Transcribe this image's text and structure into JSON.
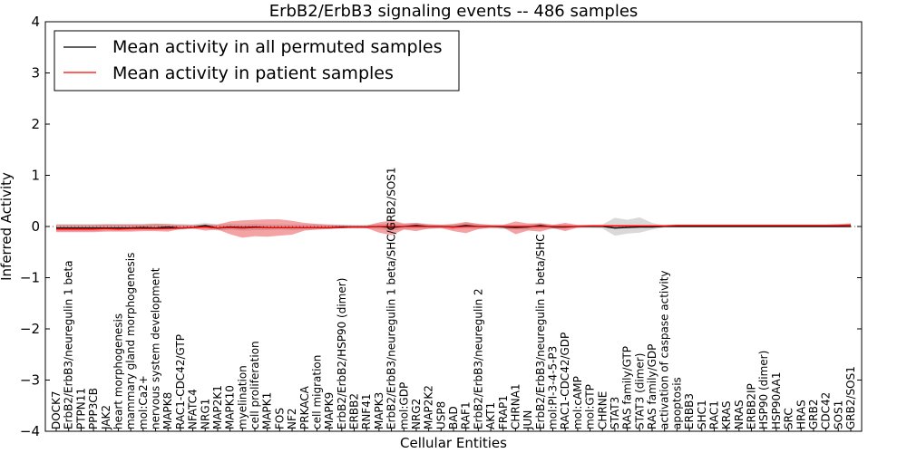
{
  "chart_data": {
    "type": "line",
    "title": "ErbB2/ErbB3 signaling events -- 486 samples",
    "xlabel": "Cellular Entities",
    "ylabel": "Inferred Activity",
    "ylim": [
      -4,
      4
    ],
    "yticks": [
      -4,
      -3,
      -2,
      -1,
      0,
      1,
      2,
      3,
      4
    ],
    "legend_position": "upper-left",
    "categories": [
      "DOCK7",
      "ErbB2/ErbB3/neuregulin 1 beta",
      "PTPN11",
      "PPP3CB",
      "JAK2",
      "heart morphogenesis",
      "mammary gland morphogenesis",
      "mol:Ca2+",
      "nervous system development",
      "MAPK8",
      "RAC1-CDC42/GTP",
      "NFATC4",
      "NRG1",
      "MAP2K1",
      "MAPK10",
      "myelination",
      "cell proliferation",
      "MAPK1",
      "FOS",
      "NF2",
      "PRKACA",
      "cell migration",
      "MAPK9",
      "ErbB2/ErbB2/HSP90 (dimer)",
      "ERBB2",
      "RNF41",
      "MAPK3",
      "ErbB2/ErbB3/neuregulin 1 beta/SHC/GRB2/SOS1",
      "mol:GDP",
      "NRG2",
      "MAP2K2",
      "USP8",
      "BAD",
      "RAF1",
      "ErbB2/ErbB3/neuregulin 2",
      "AKT1",
      "FRAP1",
      "CHRNA1",
      "JUN",
      "ErbB2/ErbB3/neuregulin 1 beta/SHC",
      "mol:PI-3-4-5-P3",
      "RAC1-CDC42/GDP",
      "mol:cAMP",
      "mol:GTP",
      "CHRNE",
      "STAT3",
      "RAS family/GTP",
      "STAT3 (dimer)",
      "RAS family/GDP",
      "activation of caspase activity",
      "apoptosis",
      "ERBB3",
      "SHC1",
      "RAC1",
      "KRAS",
      "NRAS",
      "ERBB2IP",
      "HSP90 (dimer)",
      "HSP90AA1",
      "SRC",
      "HRAS",
      "GRB2",
      "CDC42",
      "SOS1",
      "GRB2/SOS1"
    ],
    "series": [
      {
        "name": "Mean activity in all permuted samples",
        "color": "#000000",
        "values": [
          -0.03,
          -0.03,
          -0.03,
          -0.03,
          -0.03,
          -0.03,
          -0.03,
          -0.02,
          -0.03,
          -0.01,
          -0.03,
          -0.02,
          0.02,
          -0.03,
          -0.01,
          -0.02,
          -0.01,
          -0.02,
          -0.02,
          -0.02,
          -0.02,
          -0.02,
          -0.02,
          -0.01,
          -0.01,
          -0.01,
          0.0,
          -0.02,
          0.0,
          0.02,
          0.0,
          0.0,
          -0.01,
          0.02,
          0.0,
          0.0,
          -0.01,
          -0.02,
          -0.01,
          0.02,
          -0.01,
          -0.01,
          0.0,
          0.0,
          0.0,
          -0.03,
          -0.02,
          -0.01,
          -0.01,
          0.0,
          0.0,
          0.0,
          0.0,
          0.0,
          0.0,
          0.0,
          0.0,
          0.0,
          0.0,
          0.0,
          0.0,
          0.0,
          0.0,
          0.0,
          0.0
        ],
        "band_low": [
          -0.09,
          -0.09,
          -0.09,
          -0.09,
          -0.08,
          -0.08,
          -0.08,
          -0.06,
          -0.07,
          -0.05,
          -0.06,
          -0.05,
          -0.03,
          -0.08,
          -0.06,
          -0.08,
          -0.07,
          -0.07,
          -0.06,
          -0.07,
          -0.06,
          -0.06,
          -0.05,
          -0.04,
          -0.04,
          -0.04,
          -0.05,
          -0.08,
          -0.05,
          -0.04,
          -0.05,
          -0.04,
          -0.05,
          -0.04,
          -0.05,
          -0.04,
          -0.05,
          -0.06,
          -0.06,
          -0.04,
          -0.05,
          -0.04,
          -0.03,
          -0.03,
          -0.04,
          -0.18,
          -0.14,
          -0.12,
          -0.06,
          -0.02,
          -0.02,
          -0.02,
          -0.02,
          -0.02,
          -0.02,
          -0.02,
          -0.02,
          -0.02,
          -0.02,
          -0.02,
          -0.02,
          -0.02,
          -0.02,
          -0.02,
          -0.02
        ],
        "band_high": [
          0.05,
          0.05,
          0.05,
          0.05,
          0.05,
          0.05,
          0.05,
          0.05,
          0.06,
          0.04,
          0.05,
          0.04,
          0.07,
          0.04,
          0.05,
          0.04,
          0.05,
          0.04,
          0.04,
          0.04,
          0.04,
          0.04,
          0.03,
          0.03,
          0.03,
          0.03,
          0.05,
          0.06,
          0.05,
          0.07,
          0.05,
          0.04,
          0.04,
          0.07,
          0.05,
          0.04,
          0.04,
          0.03,
          0.04,
          0.07,
          0.04,
          0.04,
          0.03,
          0.03,
          0.04,
          0.17,
          0.13,
          0.18,
          0.07,
          0.02,
          0.02,
          0.02,
          0.02,
          0.02,
          0.02,
          0.02,
          0.02,
          0.02,
          0.02,
          0.02,
          0.02,
          0.02,
          0.02,
          0.02,
          0.02
        ]
      },
      {
        "name": "Mean activity in patient samples",
        "color": "#ff0000",
        "values": [
          -0.05,
          -0.05,
          -0.05,
          -0.05,
          -0.04,
          -0.05,
          -0.04,
          -0.04,
          -0.04,
          -0.04,
          -0.03,
          -0.02,
          -0.01,
          -0.03,
          -0.02,
          -0.03,
          -0.02,
          -0.02,
          -0.02,
          -0.02,
          -0.02,
          -0.02,
          -0.02,
          -0.02,
          -0.01,
          -0.01,
          0.0,
          0.0,
          0.0,
          0.0,
          0.0,
          0.0,
          -0.01,
          0.0,
          0.0,
          0.0,
          0.0,
          0.0,
          0.0,
          0.0,
          0.0,
          0.0,
          0.0,
          0.01,
          0.01,
          0.01,
          0.01,
          0.01,
          0.01,
          0.01,
          0.02,
          0.02,
          0.02,
          0.02,
          0.02,
          0.02,
          0.02,
          0.02,
          0.02,
          0.02,
          0.02,
          0.02,
          0.02,
          0.02,
          0.03
        ],
        "band_low": [
          -0.11,
          -0.11,
          -0.11,
          -0.11,
          -0.1,
          -0.1,
          -0.1,
          -0.09,
          -0.09,
          -0.1,
          -0.05,
          -0.04,
          -0.08,
          -0.06,
          -0.15,
          -0.22,
          -0.19,
          -0.2,
          -0.18,
          -0.16,
          -0.08,
          -0.06,
          -0.05,
          -0.03,
          -0.02,
          -0.03,
          -0.12,
          -0.17,
          -0.06,
          -0.09,
          -0.04,
          -0.03,
          -0.09,
          -0.13,
          -0.05,
          -0.02,
          -0.02,
          -0.15,
          -0.08,
          -0.1,
          -0.03,
          -0.09,
          -0.02,
          -0.01,
          -0.01,
          -0.01,
          -0.01,
          -0.01,
          0.0,
          0.0,
          0.0,
          0.0,
          0.0,
          0.0,
          0.0,
          0.0,
          0.0,
          0.0,
          0.0,
          0.0,
          0.0,
          0.0,
          0.0,
          0.0,
          0.0
        ],
        "band_high": [
          0.03,
          0.03,
          0.03,
          0.03,
          0.04,
          0.04,
          0.04,
          0.04,
          0.05,
          0.05,
          0.03,
          0.03,
          0.04,
          0.04,
          0.1,
          0.12,
          0.13,
          0.14,
          0.14,
          0.11,
          0.07,
          0.05,
          0.04,
          0.03,
          0.02,
          0.02,
          0.08,
          0.12,
          0.06,
          0.07,
          0.04,
          0.03,
          0.05,
          0.09,
          0.05,
          0.03,
          0.03,
          0.1,
          0.06,
          0.06,
          0.03,
          0.07,
          0.03,
          0.03,
          0.03,
          0.03,
          0.03,
          0.03,
          0.03,
          0.03,
          0.04,
          0.04,
          0.04,
          0.04,
          0.04,
          0.04,
          0.04,
          0.04,
          0.04,
          0.04,
          0.04,
          0.04,
          0.04,
          0.05,
          0.06
        ]
      }
    ]
  }
}
